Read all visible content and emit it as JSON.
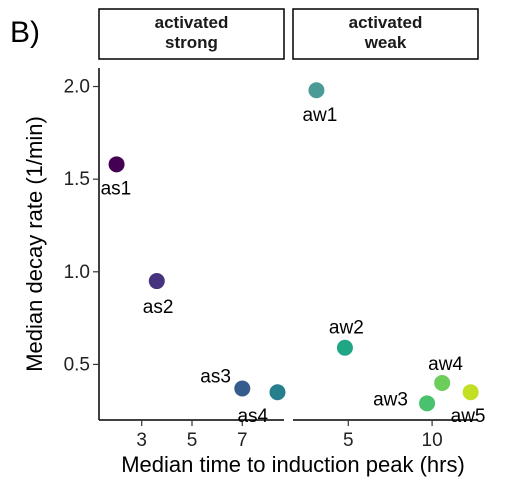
{
  "figure": {
    "panel_letter": "B)"
  },
  "chart_data": {
    "type": "scatter",
    "xlabel": "Median time to induction peak (hrs)",
    "ylabel": "Median decay rate (1/min)",
    "ylim": [
      0.2,
      2.1
    ],
    "yticks": [
      0.5,
      1.0,
      1.5,
      2.0
    ],
    "ytick_labels": [
      "0.5",
      "1.0",
      "1.5",
      "2.0"
    ],
    "grid": false,
    "legend": "none",
    "facets": [
      {
        "strip_label_lines": [
          "activated",
          "strong"
        ],
        "xlim": [
          1.5,
          8.5
        ],
        "xticks": [
          3,
          5,
          7
        ],
        "xtick_labels": [
          "3",
          "5",
          "7"
        ],
        "points": [
          {
            "label": "as1",
            "x": 2.0,
            "y": 1.58,
            "color": "#440154"
          },
          {
            "label": "as2",
            "x": 3.6,
            "y": 0.95,
            "color": "#46337e"
          },
          {
            "label": "as3",
            "x": 7.0,
            "y": 0.37,
            "color": "#365c8d"
          },
          {
            "label": "as4",
            "x": 8.4,
            "y": 0.35,
            "color": "#277f8e"
          }
        ]
      },
      {
        "strip_label_lines": [
          "activated",
          "weak"
        ],
        "xlim": [
          2.0,
          12.5
        ],
        "xticks": [
          5,
          10
        ],
        "xtick_labels": [
          "5",
          "10"
        ],
        "points": [
          {
            "label": "aw1",
            "x": 3.1,
            "y": 1.98,
            "color": "#4a9a96"
          },
          {
            "label": "aw2",
            "x": 4.8,
            "y": 0.59,
            "color": "#21a685"
          },
          {
            "label": "aw3",
            "x": 9.7,
            "y": 0.29,
            "color": "#4ac16d"
          },
          {
            "label": "aw4",
            "x": 10.6,
            "y": 0.4,
            "color": "#6ccd5a"
          },
          {
            "label": "aw5",
            "x": 12.3,
            "y": 0.35,
            "color": "#c2df23"
          }
        ]
      }
    ]
  }
}
